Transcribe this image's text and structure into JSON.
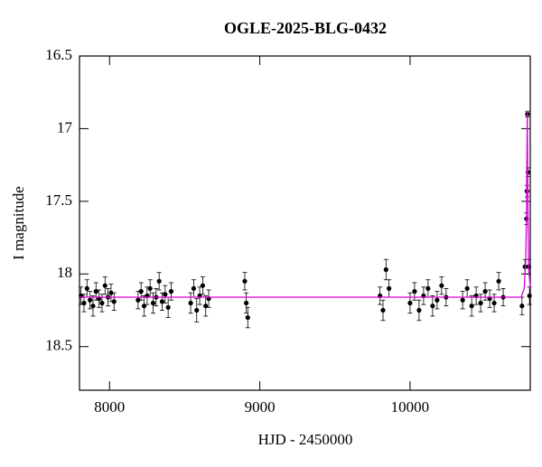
{
  "chart_data": {
    "type": "scatter",
    "title": "OGLE-2025-BLG-0432",
    "x_label": "HJD - 2450000",
    "y_label": "I magnitude",
    "xlim": [
      7800,
      10800
    ],
    "ylim": [
      18.8,
      16.5
    ],
    "xticks": [
      8000,
      9000,
      10000
    ],
    "yticks": [
      16.5,
      17,
      17.5,
      18,
      18.5
    ],
    "color": "#000000",
    "x": [
      7810,
      7830,
      7850,
      7870,
      7890,
      7910,
      7930,
      7950,
      7970,
      7990,
      8010,
      8030,
      8190,
      8210,
      8230,
      8250,
      8270,
      8290,
      8310,
      8330,
      8350,
      8370,
      8390,
      8410,
      8540,
      8560,
      8580,
      8600,
      8620,
      8640,
      8660,
      8900,
      8910,
      8920,
      9800,
      9820,
      9840,
      9860,
      10000,
      10030,
      10060,
      10090,
      10120,
      10150,
      10180,
      10210,
      10240,
      10350,
      10380,
      10410,
      10440,
      10470,
      10500,
      10530,
      10560,
      10590,
      10620,
      10745,
      10765,
      10775,
      10778,
      10781,
      10785,
      10790,
      10795
    ],
    "values": [
      18.15,
      18.2,
      18.1,
      18.18,
      18.22,
      18.12,
      18.17,
      18.2,
      18.08,
      18.16,
      18.13,
      18.19,
      18.18,
      18.12,
      18.22,
      18.15,
      18.1,
      18.2,
      18.16,
      18.05,
      18.19,
      18.14,
      18.23,
      18.12,
      18.2,
      18.1,
      18.25,
      18.15,
      18.08,
      18.22,
      18.17,
      18.05,
      18.2,
      18.3,
      18.15,
      18.25,
      17.97,
      18.1,
      18.2,
      18.12,
      18.25,
      18.15,
      18.1,
      18.22,
      18.18,
      18.08,
      18.16,
      18.18,
      18.1,
      18.22,
      18.15,
      18.2,
      18.12,
      18.17,
      18.2,
      18.05,
      18.16,
      18.22,
      17.95,
      17.62,
      17.43,
      16.9,
      17.3,
      17.95,
      18.15
    ],
    "errors": [
      0.06,
      0.06,
      0.06,
      0.06,
      0.07,
      0.06,
      0.06,
      0.06,
      0.06,
      0.06,
      0.06,
      0.06,
      0.06,
      0.06,
      0.07,
      0.06,
      0.06,
      0.07,
      0.06,
      0.06,
      0.06,
      0.06,
      0.07,
      0.06,
      0.07,
      0.06,
      0.08,
      0.06,
      0.06,
      0.07,
      0.06,
      0.06,
      0.07,
      0.07,
      0.06,
      0.07,
      0.07,
      0.06,
      0.07,
      0.06,
      0.07,
      0.06,
      0.06,
      0.07,
      0.06,
      0.06,
      0.06,
      0.06,
      0.06,
      0.07,
      0.06,
      0.06,
      0.06,
      0.06,
      0.06,
      0.06,
      0.06,
      0.06,
      0.05,
      0.04,
      0.04,
      0.02,
      0.03,
      0.05,
      0.06
    ],
    "model": {
      "color": "#dd00dd",
      "x": [
        7800,
        10740,
        10760,
        10770,
        10775,
        10780,
        10785,
        10790,
        10800
      ],
      "values": [
        18.16,
        18.16,
        18.1,
        17.9,
        17.6,
        16.88,
        17.6,
        17.95,
        18.1
      ]
    }
  }
}
